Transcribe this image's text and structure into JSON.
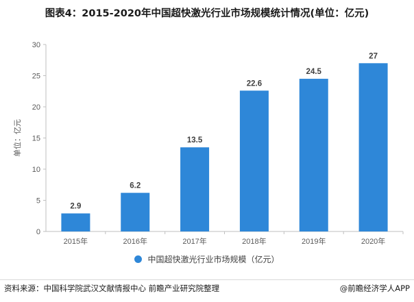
{
  "colors": {
    "bar": "#2e87d8",
    "axis": "#bfbfbf",
    "grid": "#e6e6e6"
  },
  "chart_data": {
    "type": "bar",
    "title": "图表4：2015-2020年中国超快激光行业市场规模统计情况(单位：亿元)",
    "categories": [
      "2015年",
      "2016年",
      "2017年",
      "2018年",
      "2019年",
      "2020年"
    ],
    "series": [
      {
        "name": "中国超快激光行业市场规模（亿元）",
        "values": [
          2.9,
          6.2,
          13.5,
          22.6,
          24.5,
          27
        ]
      }
    ],
    "value_labels": [
      "2.9",
      "6.2",
      "13.5",
      "22.6",
      "24.5",
      "27"
    ],
    "ylabel": "单位：亿元",
    "ylim": [
      0,
      30
    ],
    "yticks": [
      "0",
      "5",
      "10",
      "15",
      "20",
      "25",
      "30"
    ],
    "grid": false,
    "legend": "bottom"
  },
  "footer": {
    "source": "资料来源：中国科学院武汉文献情报中心 前瞻产业研究院整理",
    "brand": "@前瞻经济学人APP"
  }
}
